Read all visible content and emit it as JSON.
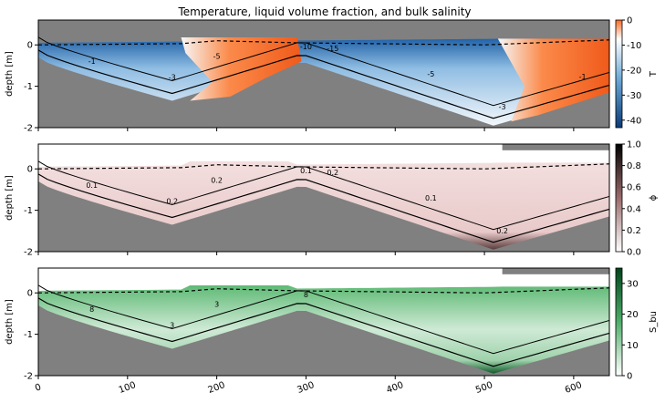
{
  "title": "Temperature, liquid volume fraction, and bulk salinity",
  "chart_data": [
    {
      "type": "heatmap",
      "field": "temperature",
      "ylabel": "depth [m]",
      "xlim": [
        0,
        640
      ],
      "ylim": [
        -2,
        0.6
      ],
      "yticks": [
        "0",
        "-1",
        "-2"
      ],
      "colorbar": {
        "label": "T",
        "ticks": [
          "0",
          "-10",
          "-20",
          "-30",
          "-40"
        ],
        "range": [
          -43,
          0
        ],
        "colors": [
          "#0b3a77",
          "#6aa8d6",
          "#ffffff",
          "#fb6a26"
        ]
      },
      "contour_labels": [
        "-1",
        "-3",
        "-5",
        "-10",
        "-15",
        "-5",
        "-3",
        "-1"
      ]
    },
    {
      "type": "heatmap",
      "field": "liquid volume fraction",
      "ylabel": "depth [m]",
      "xlim": [
        0,
        640
      ],
      "ylim": [
        -2,
        0.6
      ],
      "yticks": [
        "0",
        "-1",
        "-2"
      ],
      "colorbar": {
        "label": "ϕ",
        "ticks": [
          "1.0",
          "0.8",
          "0.6",
          "0.4",
          "0.2",
          "0.0"
        ],
        "range": [
          0,
          1
        ],
        "colors": [
          "#ffffff",
          "#7a4a4a",
          "#000000"
        ]
      },
      "contour_labels": [
        "0.1",
        "0.2",
        "0.2",
        "0.1",
        "0.2",
        "0.1",
        "0.2"
      ]
    },
    {
      "type": "heatmap",
      "field": "bulk salinity",
      "ylabel": "depth [m]",
      "xlabel": "",
      "xlim": [
        0,
        640
      ],
      "ylim": [
        -2,
        0.6
      ],
      "yticks": [
        "0",
        "-1",
        "-2"
      ],
      "xticks": [
        "0",
        "100",
        "200",
        "300",
        "400",
        "500",
        "600"
      ],
      "colorbar": {
        "label": "S_bu",
        "ticks": [
          "30",
          "20",
          "10",
          "0"
        ],
        "range": [
          0,
          35
        ],
        "colors": [
          "#ffffff",
          "#3aa05a",
          "#00441b"
        ]
      },
      "contour_labels": [
        "8",
        "3",
        "3",
        "8"
      ]
    }
  ]
}
